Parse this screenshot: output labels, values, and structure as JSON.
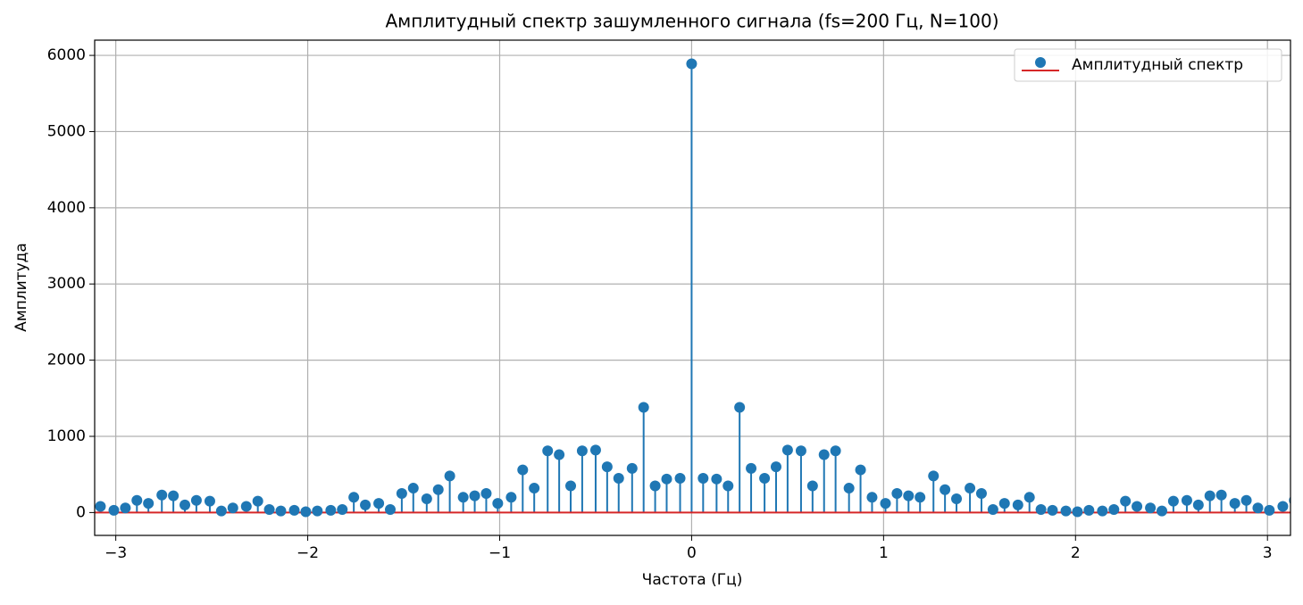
{
  "chart_data": {
    "type": "stem",
    "title": "Амплитудный спектр зашумленного сигнала (fs=200 Гц, N=100)",
    "x_label": "Частота (Гц)",
    "y_label": "Амплитуда",
    "x": [
      -3.14,
      -3.08,
      -3.01,
      -2.95,
      -2.89,
      -2.83,
      -2.76,
      -2.7,
      -2.64,
      -2.58,
      -2.51,
      -2.45,
      -2.39,
      -2.32,
      -2.26,
      -2.2,
      -2.14,
      -2.07,
      -2.01,
      -1.95,
      -1.88,
      -1.82,
      -1.76,
      -1.7,
      -1.63,
      -1.57,
      -1.51,
      -1.45,
      -1.38,
      -1.32,
      -1.26,
      -1.19,
      -1.13,
      -1.07,
      -1.01,
      -0.94,
      -0.88,
      -0.82,
      -0.75,
      -0.69,
      -0.63,
      -0.57,
      -0.5,
      -0.44,
      -0.38,
      -0.31,
      -0.25,
      -0.19,
      -0.13,
      -0.06,
      0,
      0.06,
      0.13,
      0.19,
      0.25,
      0.31,
      0.38,
      0.44,
      0.5,
      0.57,
      0.63,
      0.69,
      0.75,
      0.82,
      0.88,
      0.94,
      1.01,
      1.07,
      1.13,
      1.19,
      1.26,
      1.32,
      1.38,
      1.45,
      1.51,
      1.57,
      1.63,
      1.7,
      1.76,
      1.82,
      1.88,
      1.95,
      2.01,
      2.07,
      2.14,
      2.2,
      2.26,
      2.32,
      2.39,
      2.45,
      2.51,
      2.58,
      2.64,
      2.7,
      2.76,
      2.83,
      2.89,
      2.95,
      3.01,
      3.08,
      3.14
    ],
    "series": [
      {
        "name": "Амплитудный спектр",
        "color": "#1f77b4",
        "values": [
          160,
          80,
          30,
          60,
          160,
          120,
          230,
          220,
          100,
          160,
          150,
          20,
          60,
          80,
          150,
          40,
          20,
          30,
          10,
          20,
          30,
          40,
          200,
          100,
          120,
          40,
          250,
          320,
          180,
          300,
          480,
          200,
          220,
          250,
          120,
          200,
          560,
          320,
          810,
          760,
          350,
          810,
          820,
          600,
          450,
          580,
          1380,
          350,
          440,
          450,
          5890,
          450,
          440,
          350,
          1380,
          580,
          450,
          600,
          820,
          810,
          350,
          760,
          810,
          320,
          560,
          200,
          120,
          250,
          220,
          200,
          480,
          300,
          180,
          320,
          250,
          40,
          120,
          100,
          200,
          40,
          30,
          20,
          10,
          30,
          20,
          40,
          150,
          80,
          60,
          20,
          150,
          160,
          100,
          220,
          230,
          120,
          160,
          60,
          30,
          80,
          160
        ]
      }
    ],
    "baseline_color": "#d62728",
    "xlim": [
      -3.11,
      3.12
    ],
    "xticks": [
      {
        "value": -3,
        "label": "−3"
      },
      {
        "value": -2,
        "label": "−2"
      },
      {
        "value": -1,
        "label": "−1"
      },
      0,
      1,
      2,
      3
    ],
    "ylim": [
      -300,
      6200
    ],
    "yticks": [
      0,
      1000,
      2000,
      3000,
      4000,
      5000,
      6000
    ],
    "grid": true,
    "legend": "upper right"
  }
}
